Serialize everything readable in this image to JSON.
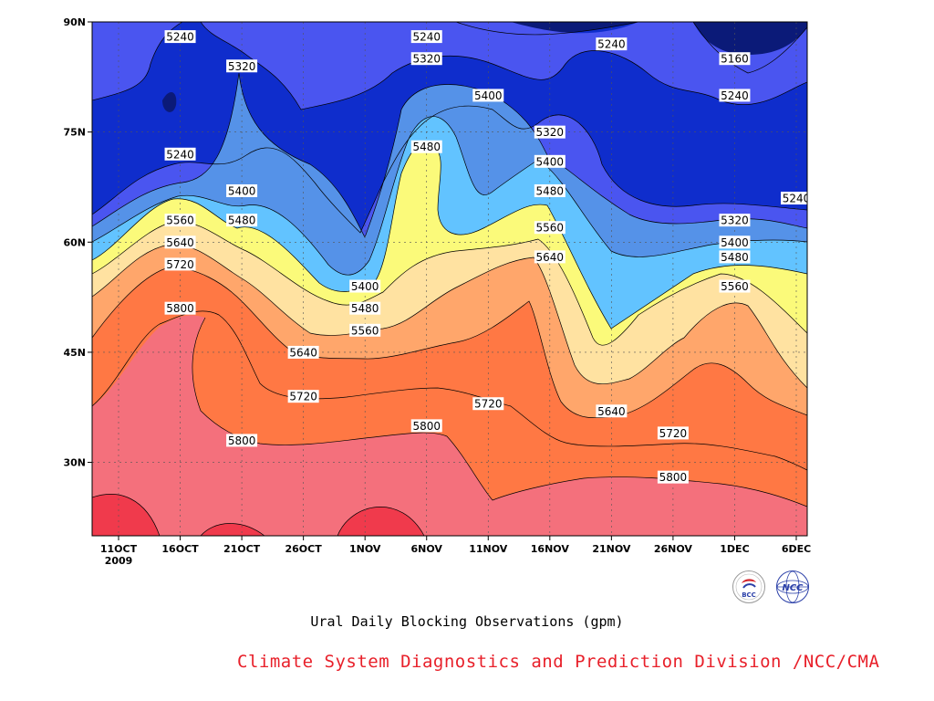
{
  "chart_data": {
    "type": "contour",
    "x_ticks": [
      "11OCT",
      "16OCT",
      "21OCT",
      "26OCT",
      "1NOV",
      "6NOV",
      "11NOV",
      "16NOV",
      "21NOV",
      "26NOV",
      "1DEC",
      "6DEC"
    ],
    "x_sub": "2009",
    "y_ticks": [
      "90N",
      "75N",
      "60N",
      "45N",
      "30N"
    ],
    "y_values": [
      90,
      75,
      60,
      45,
      30
    ],
    "ylim": [
      20,
      90
    ],
    "levels": [
      5160,
      5240,
      5320,
      5400,
      5480,
      5560,
      5640,
      5720,
      5800
    ],
    "colors": {
      "lt5160": "#0b1a78",
      "5160": "#0f2dcc",
      "5240": "#4a55f0",
      "5320": "#5592e8",
      "5400": "#62c3ff",
      "5480": "#fbfa7a",
      "5560": "#ffe2a1",
      "5640": "#ffa66b",
      "5720": "#ff7844",
      "5800": "#f4707c",
      "gt5880": "#f03a4c"
    },
    "contour_labels": [
      {
        "text": "5240",
        "date": "16OCT",
        "lat": 88
      },
      {
        "text": "5320",
        "date": "21OCT",
        "lat": 84
      },
      {
        "text": "5240",
        "date": "6NOV",
        "lat": 88
      },
      {
        "text": "5320",
        "date": "6NOV",
        "lat": 85
      },
      {
        "text": "5240",
        "date": "21NOV",
        "lat": 87
      },
      {
        "text": "5160",
        "date": "1DEC",
        "lat": 85
      },
      {
        "text": "5400",
        "date": "11NOV",
        "lat": 80
      },
      {
        "text": "5240",
        "date": "1DEC",
        "lat": 80
      },
      {
        "text": "5320",
        "date": "16NOV",
        "lat": 75
      },
      {
        "text": "5240",
        "date": "16OCT",
        "lat": 72
      },
      {
        "text": "5480",
        "date": "6NOV",
        "lat": 73
      },
      {
        "text": "5400",
        "date": "16NOV",
        "lat": 71
      },
      {
        "text": "5400",
        "date": "21OCT",
        "lat": 67
      },
      {
        "text": "5480",
        "date": "16NOV",
        "lat": 67
      },
      {
        "text": "5240",
        "date": "6DEC",
        "lat": 66
      },
      {
        "text": "5320",
        "date": "1DEC",
        "lat": 63
      },
      {
        "text": "5560",
        "date": "16OCT",
        "lat": 63
      },
      {
        "text": "5480",
        "date": "21OCT",
        "lat": 63
      },
      {
        "text": "5560",
        "date": "16NOV",
        "lat": 62
      },
      {
        "text": "5400",
        "date": "1DEC",
        "lat": 60
      },
      {
        "text": "5640",
        "date": "16OCT",
        "lat": 60
      },
      {
        "text": "5640",
        "date": "16NOV",
        "lat": 58
      },
      {
        "text": "5480",
        "date": "1DEC",
        "lat": 58
      },
      {
        "text": "5720",
        "date": "16OCT",
        "lat": 57
      },
      {
        "text": "5400",
        "date": "1NOV",
        "lat": 54
      },
      {
        "text": "5560",
        "date": "1DEC",
        "lat": 54
      },
      {
        "text": "5480",
        "date": "1NOV",
        "lat": 51
      },
      {
        "text": "5800",
        "date": "16OCT",
        "lat": 51
      },
      {
        "text": "5560",
        "date": "1NOV",
        "lat": 48
      },
      {
        "text": "5640",
        "date": "26OCT",
        "lat": 45
      },
      {
        "text": "5720",
        "date": "26OCT",
        "lat": 39
      },
      {
        "text": "5720",
        "date": "11NOV",
        "lat": 38
      },
      {
        "text": "5640",
        "date": "21NOV",
        "lat": 37
      },
      {
        "text": "5800",
        "date": "6NOV",
        "lat": 35
      },
      {
        "text": "5720",
        "date": "26NOV",
        "lat": 34
      },
      {
        "text": "5800",
        "date": "21OCT",
        "lat": 33
      },
      {
        "text": "5800",
        "date": "26NOV",
        "lat": 28
      }
    ]
  },
  "title": "Ural Daily Blocking Observations (gpm)",
  "credit": "Climate System Diagnostics and Prediction Division /NCC/CMA",
  "logos": {
    "left": {
      "text": "BCC",
      "color": "#d4242c"
    },
    "right": {
      "text": "NCC",
      "color": "#2a3fa8"
    }
  }
}
